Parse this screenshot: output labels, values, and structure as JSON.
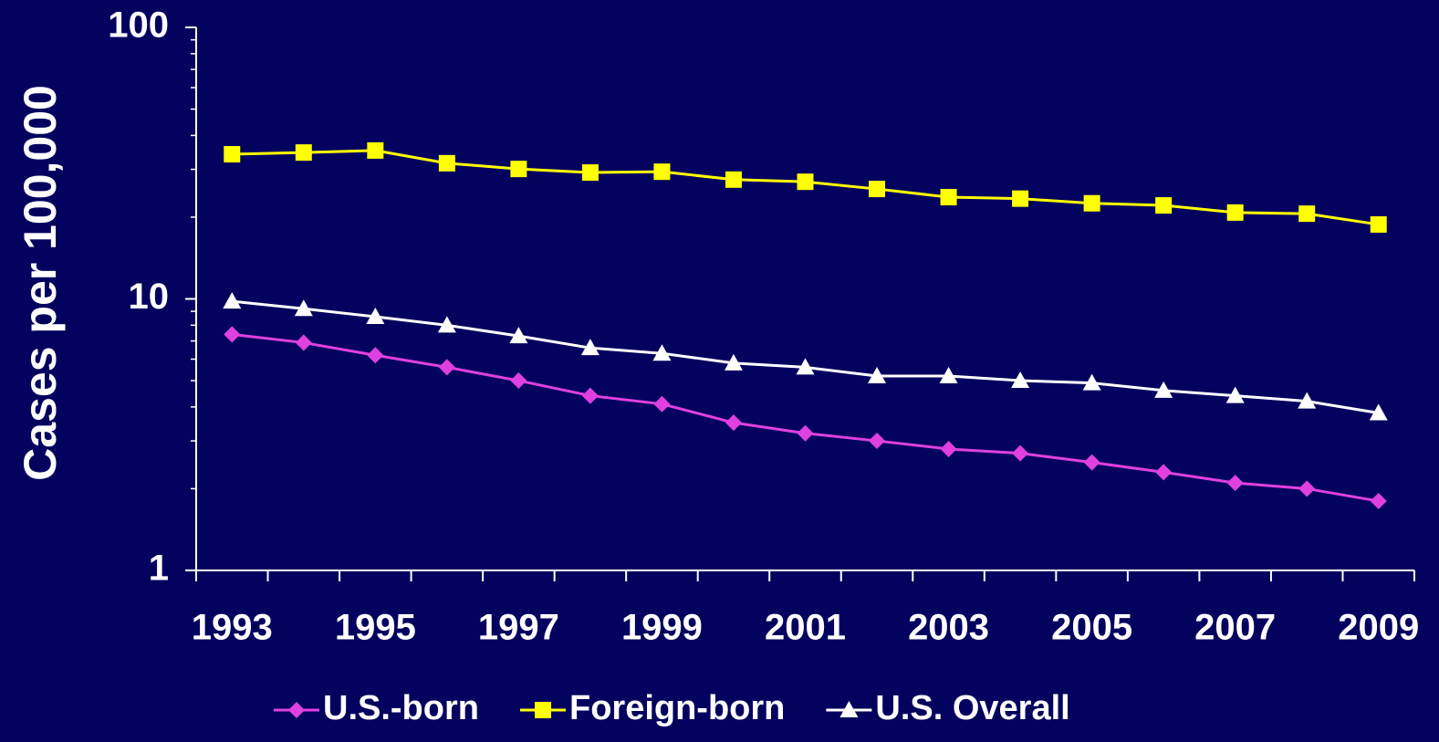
{
  "chart_data": {
    "type": "line",
    "ylabel": "Cases per 100,000",
    "categories": [
      "1993",
      null,
      "1995",
      null,
      "1997",
      null,
      "1999",
      null,
      "2001",
      null,
      "2003",
      null,
      "2005",
      null,
      "2007",
      null,
      "2009"
    ],
    "series": [
      {
        "name": "U.S.-born",
        "color": "#e040e0",
        "marker": "diamond",
        "values": [
          7.4,
          6.9,
          6.2,
          5.6,
          5.0,
          4.4,
          4.1,
          3.5,
          3.2,
          3.0,
          2.8,
          2.7,
          2.5,
          2.3,
          2.1,
          2.0,
          1.8
        ]
      },
      {
        "name": "Foreign-born",
        "color": "#ffff00",
        "marker": "square",
        "values": [
          34.1,
          34.6,
          35.2,
          31.6,
          30.1,
          29.2,
          29.4,
          27.5,
          27.0,
          25.4,
          23.7,
          23.4,
          22.5,
          22.1,
          20.8,
          20.6,
          18.8
        ]
      },
      {
        "name": "U.S. Overall",
        "color": "#ffffff",
        "marker": "triangle",
        "values": [
          9.8,
          9.2,
          8.6,
          8.0,
          7.3,
          6.6,
          6.3,
          5.8,
          5.6,
          5.2,
          5.2,
          5.0,
          4.9,
          4.6,
          4.4,
          4.2,
          3.8
        ]
      }
    ],
    "ylim": [
      1,
      100
    ],
    "yticks": [
      1,
      10,
      100
    ],
    "log_scale": true,
    "yminor": [
      2,
      3,
      4,
      5,
      6,
      7,
      8,
      9,
      20,
      30,
      40,
      50,
      60,
      70,
      80,
      90
    ],
    "legend": "bottom",
    "grid": false
  }
}
